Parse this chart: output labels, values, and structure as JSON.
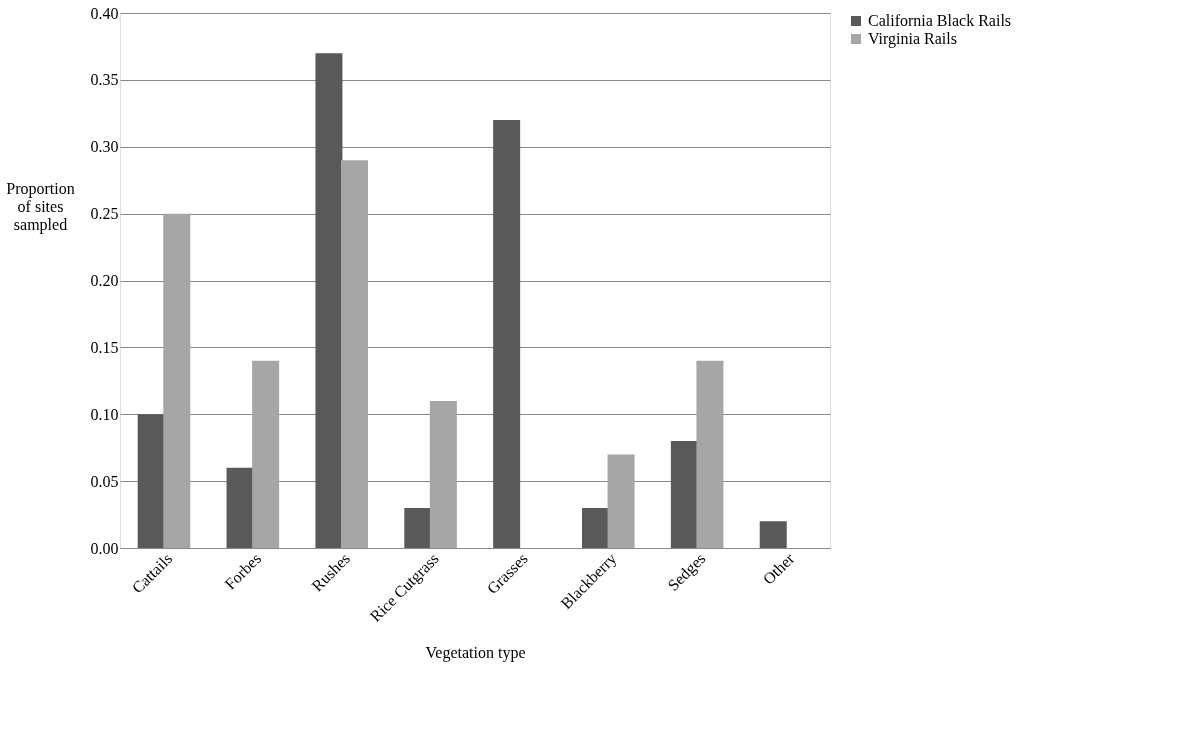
{
  "chart_data": {
    "type": "bar",
    "xlabel": "Vegetation type",
    "ylabel": "Proportion of sites sampled",
    "categories": [
      "Cattails",
      "Forbes",
      "Rushes",
      "Rice Cutgrass",
      "Grasses",
      "Blackberry",
      "Sedges",
      "Other"
    ],
    "series": [
      {
        "name": "California Black Rails",
        "color": "#595959",
        "values": [
          0.1,
          0.06,
          0.37,
          0.03,
          0.32,
          0.03,
          0.08,
          0.02
        ]
      },
      {
        "name": "Virginia  Rails",
        "color": "#a6a6a6",
        "values": [
          0.25,
          0.14,
          0.29,
          0.11,
          0,
          0.07,
          0.14,
          0
        ]
      }
    ],
    "ylim": [
      0,
      0.4
    ],
    "yticks": [
      {
        "value": 0,
        "label": "0.00"
      },
      {
        "value": 0.05,
        "label": "0.05"
      },
      {
        "value": 0.1,
        "label": "0.10"
      },
      {
        "value": 0.15,
        "label": "0.15"
      },
      {
        "value": 0.2,
        "label": "0.20"
      },
      {
        "value": 0.25,
        "label": "0.25"
      },
      {
        "value": 0.3,
        "label": "0.30"
      },
      {
        "value": 0.35,
        "label": "0.35"
      },
      {
        "value": 0.4,
        "label": "0.40"
      }
    ],
    "grid": "y",
    "legend": "right"
  }
}
